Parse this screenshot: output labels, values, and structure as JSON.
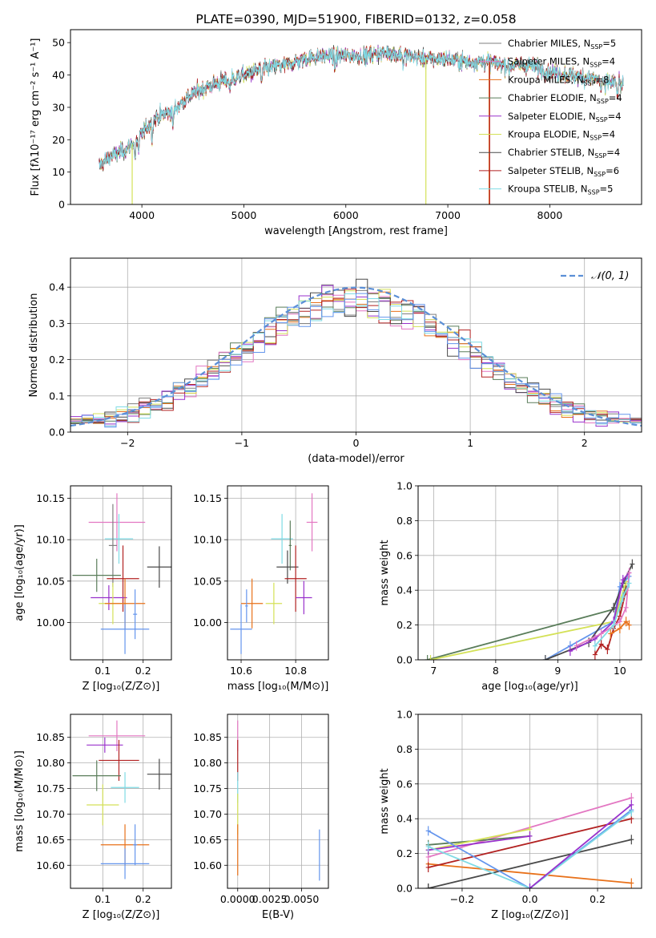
{
  "figure": {
    "title": "PLATE=0390, MJD=51900, FIBERID=0132, z=0.058"
  },
  "colors": {
    "Chabrier MILES": "#7f7f7f",
    "Salpeter MILES": "#e377c2",
    "Kroupa MILES": "#e8711a",
    "Chabrier ELODIE": "#5a7d5a",
    "Salpeter ELODIE": "#9932cc",
    "Kroupa ELODIE": "#d4e157",
    "Chabrier STELIB": "#4a4a4a",
    "Salpeter STELIB": "#b22222",
    "Kroupa STELIB": "#7fdbe5",
    "Kroupa STELIB shade": "#6495ed",
    "gaussian": "#5b8fd6",
    "grid": "#b0b0b0"
  },
  "chart_data": [
    {
      "id": "spectrum",
      "type": "line",
      "title": "PLATE=0390, MJD=51900, FIBERID=0132, z=0.058",
      "xlabel": "wavelength [Angstrom, rest frame]",
      "ylabel": "Flux [fλ10⁻¹⁷ erg cm⁻² s⁻¹ A⁻¹]",
      "xlim": [
        3300,
        8900
      ],
      "ylim": [
        0,
        54
      ],
      "xticks": [
        4000,
        5000,
        6000,
        7000,
        8000
      ],
      "yticks": [
        0,
        10,
        20,
        30,
        40,
        50
      ],
      "legend_position": "top-right",
      "series": [
        {
          "name": "Chabrier MILES, N",
          "sub": "SSP",
          "suffix": "=5",
          "color": "#7f7f7f"
        },
        {
          "name": "Salpeter MILES, N",
          "sub": "SSP",
          "suffix": "=4",
          "color": "#e377c2"
        },
        {
          "name": "Kroupa MILES, N",
          "sub": "SSP",
          "suffix": "=8",
          "color": "#e8711a"
        },
        {
          "name": "Chabrier ELODIE, N",
          "sub": "SSP",
          "suffix": "=4",
          "color": "#5a7d5a"
        },
        {
          "name": "Salpeter ELODIE, N",
          "sub": "SSP",
          "suffix": "=4",
          "color": "#9932cc"
        },
        {
          "name": "Kroupa ELODIE, N",
          "sub": "SSP",
          "suffix": "=4",
          "color": "#d4e157"
        },
        {
          "name": "Chabrier STELIB, N",
          "sub": "SSP",
          "suffix": "=4",
          "color": "#4a4a4a"
        },
        {
          "name": "Salpeter STELIB, N",
          "sub": "SSP",
          "suffix": "=6",
          "color": "#b22222"
        },
        {
          "name": "Kroupa STELIB, N",
          "sub": "SSP",
          "suffix": "=5",
          "color": "#7fdbe5"
        }
      ],
      "continuum": [
        [
          3580,
          12
        ],
        [
          3700,
          15
        ],
        [
          3850,
          17
        ],
        [
          3950,
          20
        ],
        [
          4050,
          24
        ],
        [
          4150,
          27
        ],
        [
          4300,
          29
        ],
        [
          4450,
          33
        ],
        [
          4600,
          36
        ],
        [
          4800,
          38
        ],
        [
          5000,
          40
        ],
        [
          5200,
          42
        ],
        [
          5400,
          43
        ],
        [
          5600,
          45
        ],
        [
          5800,
          46
        ],
        [
          6000,
          46
        ],
        [
          6200,
          46
        ],
        [
          6400,
          47
        ],
        [
          6600,
          46
        ],
        [
          6800,
          45
        ],
        [
          7000,
          45
        ],
        [
          7200,
          44
        ],
        [
          7400,
          44
        ],
        [
          7600,
          43
        ],
        [
          7800,
          43
        ],
        [
          8000,
          41
        ],
        [
          8200,
          40
        ],
        [
          8400,
          39
        ],
        [
          8700,
          37
        ]
      ],
      "features": [
        [
          3934,
          6
        ],
        [
          3969,
          5
        ],
        [
          4101,
          4
        ],
        [
          4304,
          5
        ],
        [
          4861,
          3
        ],
        [
          5175,
          4
        ],
        [
          5893,
          4
        ],
        [
          6563,
          3
        ],
        [
          6780,
          46
        ],
        [
          7405,
          44
        ],
        [
          7600,
          2
        ],
        [
          8500,
          3
        ],
        [
          8542,
          3
        ],
        [
          8662,
          3
        ]
      ]
    },
    {
      "id": "residuals",
      "type": "histogram",
      "xlabel": "(data-model)/error",
      "ylabel": "Normed distribution",
      "xlim": [
        -2.5,
        2.5
      ],
      "ylim": [
        0,
        0.48
      ],
      "xticks": [
        -2,
        -1,
        0,
        1,
        2
      ],
      "yticks": [
        0.0,
        0.1,
        0.2,
        0.3,
        0.4
      ],
      "bin_width": 0.1,
      "legend": {
        "label_main": "𝒩(0, 1)",
        "position": "top-right"
      },
      "series_colors": [
        "#7f7f7f",
        "#e377c2",
        "#e8711a",
        "#5a7d5a",
        "#9932cc",
        "#d4e157",
        "#4a4a4a",
        "#b22222",
        "#7fdbe5",
        "#6495ed"
      ],
      "gaussian": {
        "mean": 0,
        "sigma": 1,
        "color": "#5b8fd6"
      }
    },
    {
      "id": "age_vs_Z",
      "type": "errorbar",
      "xlabel": "Z [log₁₀(Z/Z⊙)]",
      "ylabel": "age  [log₁₀(age/yr)]",
      "xlim": [
        0.02,
        0.27
      ],
      "ylim": [
        9.955,
        10.165
      ],
      "xticks": [
        0.1,
        0.2
      ],
      "yticks": [
        10.0,
        10.05,
        10.1,
        10.15
      ],
      "points": [
        {
          "x": 0.135,
          "y": 10.121,
          "xe": 0.07,
          "ye": 0.035,
          "color": "#e377c2"
        },
        {
          "x": 0.14,
          "y": 10.101,
          "xe": 0.035,
          "ye": 0.03,
          "color": "#7fdbe5"
        },
        {
          "x": 0.125,
          "y": 10.093,
          "xe": 0.01,
          "ye": 0.05,
          "color": "#7f7f7f"
        },
        {
          "x": 0.24,
          "y": 10.067,
          "xe": 0.03,
          "ye": 0.025,
          "color": "#4a4a4a"
        },
        {
          "x": 0.085,
          "y": 10.057,
          "xe": 0.06,
          "ye": 0.02,
          "color": "#5a7d5a"
        },
        {
          "x": 0.15,
          "y": 10.053,
          "xe": 0.04,
          "ye": 0.04,
          "color": "#b22222"
        },
        {
          "x": 0.115,
          "y": 10.03,
          "xe": 0.045,
          "ye": 0.015,
          "color": "#9932cc"
        },
        {
          "x": 0.125,
          "y": 10.023,
          "xe": 0.035,
          "ye": 0.025,
          "color": "#d4e157"
        },
        {
          "x": 0.155,
          "y": 10.023,
          "xe": 0.05,
          "ye": 0.03,
          "color": "#e8711a"
        },
        {
          "x": 0.155,
          "y": 9.992,
          "xe": 0.06,
          "ye": 0.03,
          "color": "#6495ed"
        },
        {
          "x": 0.18,
          "y": 10.01,
          "xe": 0.005,
          "ye": 0.03,
          "color": "#6495ed"
        }
      ]
    },
    {
      "id": "age_vs_mass",
      "type": "errorbar",
      "xlabel": "mass [log₁₀(M/M⊙)]",
      "xlim": [
        10.55,
        10.92
      ],
      "ylim": [
        9.955,
        10.165
      ],
      "xticks": [
        10.6,
        10.8
      ],
      "yticks": [
        10.0,
        10.05,
        10.1,
        10.15
      ],
      "points": [
        {
          "x": 10.86,
          "y": 10.121,
          "xe": 0.02,
          "ye": 0.035,
          "color": "#e377c2"
        },
        {
          "x": 10.75,
          "y": 10.101,
          "xe": 0.04,
          "ye": 0.03,
          "color": "#7fdbe5"
        },
        {
          "x": 10.78,
          "y": 10.093,
          "xe": 0.005,
          "ye": 0.03,
          "color": "#5a7d5a"
        },
        {
          "x": 10.77,
          "y": 10.067,
          "xe": 0.04,
          "ye": 0.02,
          "color": "#4a4a4a"
        },
        {
          "x": 10.8,
          "y": 10.053,
          "xe": 0.04,
          "ye": 0.04,
          "color": "#b22222"
        },
        {
          "x": 10.83,
          "y": 10.03,
          "xe": 0.03,
          "ye": 0.02,
          "color": "#9932cc"
        },
        {
          "x": 10.72,
          "y": 10.023,
          "xe": 0.03,
          "ye": 0.025,
          "color": "#d4e157"
        },
        {
          "x": 10.64,
          "y": 10.023,
          "xe": 0.04,
          "ye": 0.03,
          "color": "#e8711a"
        },
        {
          "x": 10.6,
          "y": 9.992,
          "xe": 0.04,
          "ye": 0.03,
          "color": "#6495ed"
        },
        {
          "x": 10.62,
          "y": 10.02,
          "xe": 0.005,
          "ye": 0.02,
          "color": "#6495ed"
        }
      ]
    },
    {
      "id": "weight_vs_age",
      "type": "line",
      "xlabel": "age  [log₁₀(age/yr)]",
      "ylabel": "mass weight",
      "xlim": [
        6.75,
        10.35
      ],
      "ylim": [
        0,
        1.0
      ],
      "xticks": [
        7,
        8,
        9,
        10
      ],
      "yticks": [
        0.0,
        0.2,
        0.4,
        0.6,
        0.8,
        1.0
      ],
      "series": [
        {
          "color": "#5a7d5a",
          "points": [
            [
              6.9,
              0.0
            ],
            [
              10.0,
              0.3
            ],
            [
              10.1,
              0.42
            ]
          ]
        },
        {
          "color": "#d4e157",
          "points": [
            [
              6.95,
              0.0
            ],
            [
              9.9,
              0.22
            ],
            [
              10.1,
              0.45
            ]
          ]
        },
        {
          "color": "#6495ed",
          "points": [
            [
              8.8,
              0.0
            ],
            [
              9.2,
              0.08
            ],
            [
              9.9,
              0.22
            ],
            [
              10.0,
              0.42
            ],
            [
              10.15,
              0.48
            ]
          ]
        },
        {
          "color": "#4a4a4a",
          "points": [
            [
              8.8,
              0.0
            ],
            [
              9.5,
              0.1
            ],
            [
              9.9,
              0.3
            ],
            [
              10.05,
              0.44
            ],
            [
              10.2,
              0.55
            ]
          ]
        },
        {
          "color": "#b22222",
          "points": [
            [
              9.6,
              0.03
            ],
            [
              9.7,
              0.09
            ],
            [
              9.8,
              0.06
            ],
            [
              9.9,
              0.18
            ],
            [
              10.0,
              0.25
            ],
            [
              10.1,
              0.4
            ]
          ]
        },
        {
          "color": "#9932cc",
          "points": [
            [
              9.2,
              0.05
            ],
            [
              9.6,
              0.12
            ],
            [
              9.9,
              0.22
            ],
            [
              10.05,
              0.46
            ],
            [
              10.15,
              0.5
            ]
          ]
        },
        {
          "color": "#e377c2",
          "points": [
            [
              9.3,
              0.08
            ],
            [
              9.7,
              0.15
            ],
            [
              10.0,
              0.22
            ],
            [
              10.1,
              0.3
            ],
            [
              10.15,
              0.5
            ]
          ]
        },
        {
          "color": "#e8711a",
          "points": [
            [
              9.85,
              0.15
            ],
            [
              10.0,
              0.18
            ],
            [
              10.1,
              0.22
            ],
            [
              10.15,
              0.2
            ]
          ]
        },
        {
          "color": "#7fdbe5",
          "points": [
            [
              9.6,
              0.08
            ],
            [
              9.9,
              0.2
            ],
            [
              10.05,
              0.36
            ],
            [
              10.15,
              0.44
            ]
          ]
        }
      ]
    },
    {
      "id": "mass_vs_Z",
      "type": "errorbar",
      "xlabel": "Z [log₁₀(Z/Z⊙)]",
      "ylabel": "mass [log₁₀(M/M⊙)]",
      "xlim": [
        0.02,
        0.27
      ],
      "ylim": [
        10.555,
        10.895
      ],
      "xticks": [
        0.1,
        0.2
      ],
      "yticks": [
        10.6,
        10.65,
        10.7,
        10.75,
        10.8,
        10.85
      ],
      "points": [
        {
          "x": 0.135,
          "y": 10.853,
          "xe": 0.07,
          "ye": 0.03,
          "color": "#e377c2"
        },
        {
          "x": 0.105,
          "y": 10.835,
          "xe": 0.045,
          "ye": 0.015,
          "color": "#9932cc"
        },
        {
          "x": 0.14,
          "y": 10.805,
          "xe": 0.05,
          "ye": 0.04,
          "color": "#b22222"
        },
        {
          "x": 0.085,
          "y": 10.775,
          "xe": 0.06,
          "ye": 0.03,
          "color": "#5a7d5a"
        },
        {
          "x": 0.24,
          "y": 10.778,
          "xe": 0.03,
          "ye": 0.03,
          "color": "#4a4a4a"
        },
        {
          "x": 0.155,
          "y": 10.752,
          "xe": 0.035,
          "ye": 0.03,
          "color": "#7fdbe5"
        },
        {
          "x": 0.1,
          "y": 10.718,
          "xe": 0.04,
          "ye": 0.04,
          "color": "#d4e157"
        },
        {
          "x": 0.155,
          "y": 10.64,
          "xe": 0.06,
          "ye": 0.04,
          "color": "#e8711a"
        },
        {
          "x": 0.155,
          "y": 10.603,
          "xe": 0.06,
          "ye": 0.03,
          "color": "#6495ed"
        },
        {
          "x": 0.18,
          "y": 10.64,
          "xe": 0.005,
          "ye": 0.04,
          "color": "#6495ed"
        }
      ]
    },
    {
      "id": "mass_vs_ebv",
      "type": "errorbar",
      "xlabel": "E(B-V)",
      "xlim": [
        -0.0008,
        0.0071
      ],
      "ylim": [
        10.555,
        10.895
      ],
      "xticks": [
        0.0,
        0.0025,
        0.005
      ],
      "xtick_labels": [
        "0.0000",
        "0.0025",
        "0.0050"
      ],
      "yticks": [
        10.6,
        10.65,
        10.7,
        10.75,
        10.8,
        10.85
      ],
      "points": [
        {
          "x": 0.0,
          "y": 10.853,
          "xe": 0.0,
          "ye": 0.03,
          "color": "#e377c2"
        },
        {
          "x": 0.0,
          "y": 10.805,
          "xe": 0.0,
          "ye": 0.04,
          "color": "#b22222"
        },
        {
          "x": 0.0,
          "y": 10.752,
          "xe": 0.0,
          "ye": 0.03,
          "color": "#7fdbe5"
        },
        {
          "x": 0.0,
          "y": 10.7,
          "xe": 0.0,
          "ye": 0.04,
          "color": "#d4e157"
        },
        {
          "x": 0.0,
          "y": 10.63,
          "xe": 0.0,
          "ye": 0.05,
          "color": "#e8711a"
        },
        {
          "x": 0.0064,
          "y": 10.62,
          "xe": 0.0,
          "ye": 0.05,
          "color": "#6495ed"
        }
      ]
    },
    {
      "id": "weight_vs_Z",
      "type": "line",
      "xlabel": "Z [log₁₀(Z/Z⊙)]",
      "ylabel": "mass weight",
      "xlim": [
        -0.33,
        0.33
      ],
      "ylim": [
        0,
        1.0
      ],
      "xticks": [
        -0.2,
        0.0,
        0.2
      ],
      "yticks": [
        0.0,
        0.2,
        0.4,
        0.6,
        0.8,
        1.0
      ],
      "series": [
        {
          "color": "#e8711a",
          "points": [
            [
              -0.3,
              0.14
            ],
            [
              0.3,
              0.03
            ]
          ]
        },
        {
          "color": "#4a4a4a",
          "points": [
            [
              -0.3,
              0.0
            ],
            [
              -0.3,
              0.0
            ],
            [
              0.3,
              0.28
            ]
          ]
        },
        {
          "color": "#b22222",
          "points": [
            [
              -0.3,
              0.12
            ],
            [
              0.3,
              0.4
            ]
          ]
        },
        {
          "color": "#e377c2",
          "points": [
            [
              -0.3,
              0.18
            ],
            [
              0.3,
              0.52
            ]
          ]
        },
        {
          "color": "#5a7d5a",
          "points": [
            [
              -0.3,
              0.25
            ],
            [
              0.0,
              0.3
            ]
          ]
        },
        {
          "color": "#d4e157",
          "points": [
            [
              -0.3,
              0.22
            ],
            [
              0.0,
              0.34
            ]
          ]
        },
        {
          "color": "#9932cc",
          "points": [
            [
              -0.3,
              0.22
            ],
            [
              0.0,
              0.3
            ]
          ]
        },
        {
          "color": "#6495ed",
          "points": [
            [
              -0.3,
              0.33
            ],
            [
              0.0,
              0.0
            ],
            [
              0.3,
              0.45
            ]
          ]
        },
        {
          "color": "#7fdbe5",
          "points": [
            [
              -0.3,
              0.24
            ],
            [
              0.0,
              0.0
            ],
            [
              0.3,
              0.44
            ]
          ]
        },
        {
          "color": "#9932cc",
          "points": [
            [
              0.0,
              0.0
            ],
            [
              0.3,
              0.48
            ]
          ]
        }
      ]
    }
  ]
}
